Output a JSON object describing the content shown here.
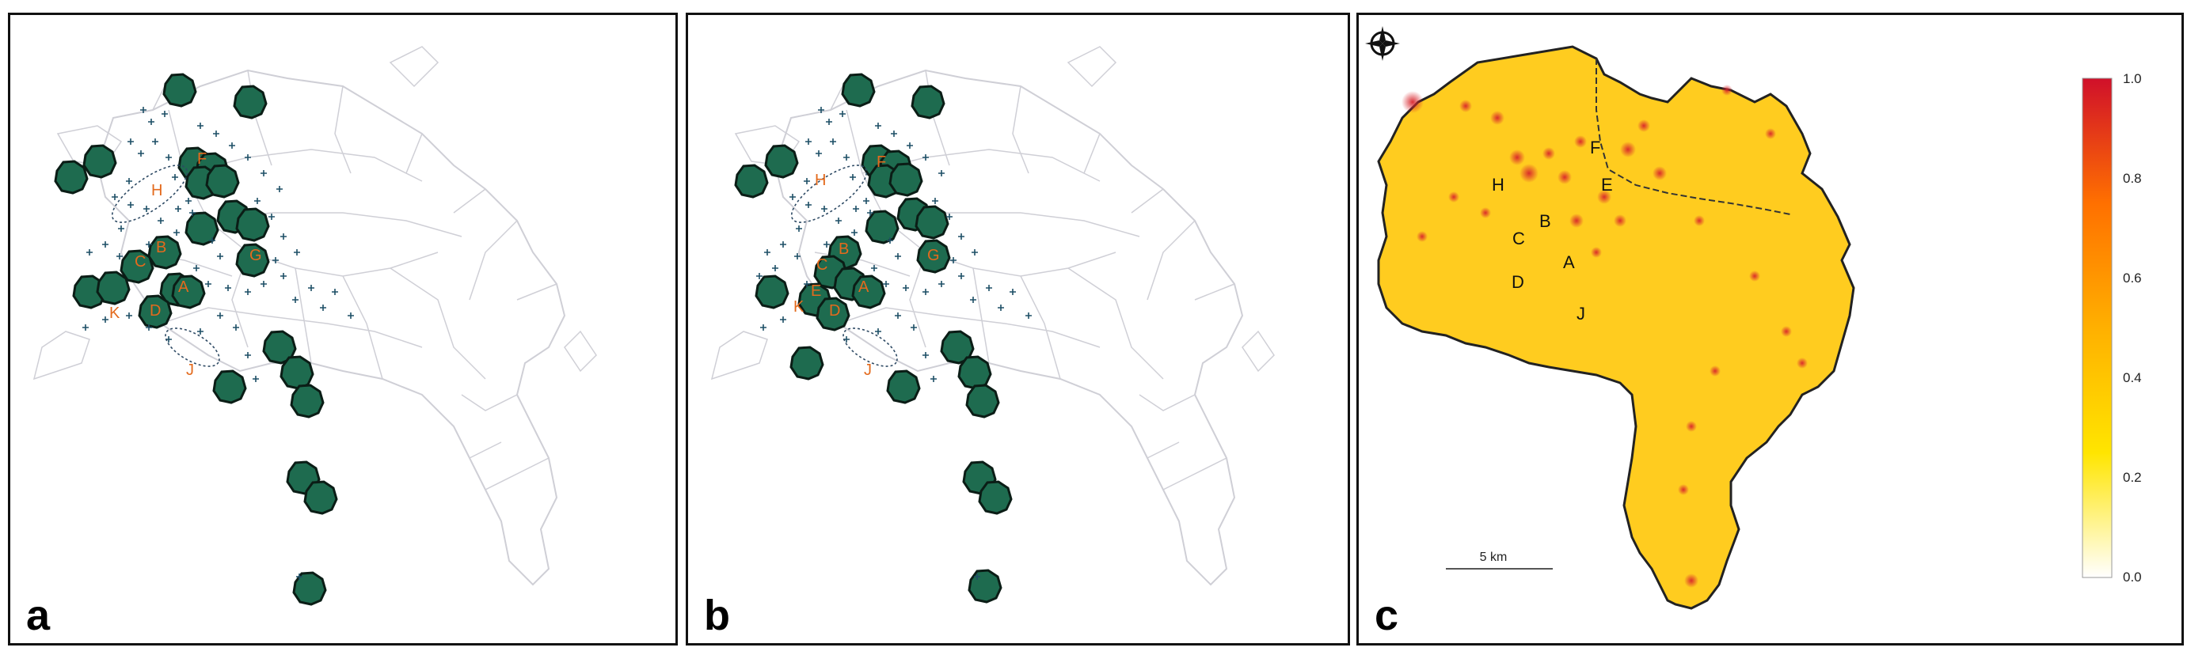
{
  "panels": [
    {
      "id": "a",
      "letter": "a",
      "area_labels": [
        "H",
        "F",
        "B",
        "C",
        "G",
        "A",
        "K",
        "D",
        "J"
      ],
      "colors": {
        "cluster_fill": "#1e6b4f",
        "cluster_edge": "#0b1d16",
        "marker": "#1d4f66",
        "district_line": "#cfcfd6",
        "ellipse": "#2e4a64",
        "label": "#e36a1d"
      }
    },
    {
      "id": "b",
      "letter": "b",
      "area_labels": [
        "H",
        "F",
        "B",
        "C",
        "G",
        "K",
        "E",
        "A",
        "D",
        "J"
      ],
      "colors": {
        "cluster_fill": "#1e6b4f",
        "cluster_edge": "#0b1d16",
        "marker": "#1d4f66",
        "district_line": "#cfcfd6",
        "ellipse": "#2e4a64",
        "label": "#e36a1d"
      }
    },
    {
      "id": "c",
      "letter": "c",
      "area_labels": [
        "F",
        "H",
        "E",
        "B",
        "C",
        "A",
        "D",
        "J"
      ],
      "scale_bar_label": "5 km",
      "colorbar": {
        "ticks": [
          "1.0",
          "0.8",
          "0.6",
          "0.4",
          "0.2",
          "0.0"
        ],
        "min": 0.0,
        "max": 1.0,
        "colors": [
          "#ffffff",
          "#ffe500",
          "#ffb000",
          "#ff7000",
          "#d0102a"
        ]
      },
      "colors": {
        "base_fill": "#ffcc1f",
        "outline": "#222222",
        "hotspot": "#d8242b"
      },
      "icons": [
        "compass-icon"
      ]
    }
  ]
}
